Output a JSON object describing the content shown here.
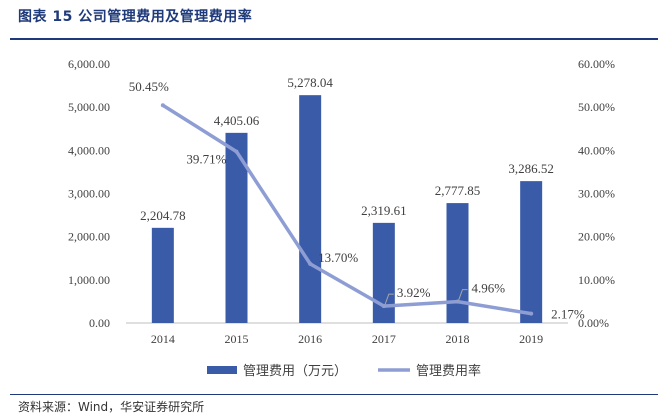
{
  "figure_title": "图表 15  公司管理费用及管理费用率",
  "source": "资料来源：Wind，华安证券研究所",
  "chart_data": {
    "type": "bar",
    "categories": [
      "2014",
      "2015",
      "2016",
      "2017",
      "2018",
      "2019"
    ],
    "series": [
      {
        "name": "管理费用（万元）",
        "type": "bar",
        "axis": "left",
        "color": "#3a5ba8",
        "values": [
          2204.78,
          4405.06,
          5278.04,
          2319.61,
          2777.85,
          3286.52
        ],
        "labels": [
          "2,204.78",
          "4,405.06",
          "5,278.04",
          "2,319.61",
          "2,777.85",
          "3,286.52"
        ]
      },
      {
        "name": "管理费用率",
        "type": "line",
        "axis": "right",
        "color": "#8e9ed4",
        "values": [
          50.45,
          39.71,
          13.7,
          3.92,
          4.96,
          2.17
        ],
        "labels": [
          "50.45%",
          "39.71%",
          "13.70%",
          "3.92%",
          "4.96%",
          "2.17%"
        ]
      }
    ],
    "y_left": {
      "min": 0,
      "max": 6000,
      "ticks": [
        "0.00",
        "1,000.00",
        "2,000.00",
        "3,000.00",
        "4,000.00",
        "5,000.00",
        "6,000.00"
      ]
    },
    "y_right": {
      "min": 0,
      "max": 60,
      "ticks": [
        "0.00%",
        "10.00%",
        "20.00%",
        "30.00%",
        "40.00%",
        "50.00%",
        "60.00%"
      ]
    },
    "grid": false,
    "legend": "bottom-center"
  }
}
